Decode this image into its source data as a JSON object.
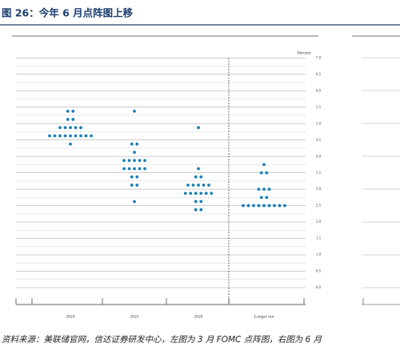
{
  "header": {
    "title": "图 26：今年 6 月点阵图上移"
  },
  "chart_data": {
    "type": "dot",
    "y_label": "Percent",
    "categories": [
      "2024",
      "2025",
      "2026",
      "Longer run"
    ],
    "values": [
      [
        5.375,
        5.375,
        5.125,
        5.125,
        4.875,
        4.875,
        4.875,
        4.875,
        4.875,
        4.625,
        4.625,
        4.625,
        4.625,
        4.625,
        4.625,
        4.625,
        4.625,
        4.625,
        4.375
      ],
      [
        5.375,
        4.375,
        4.375,
        4.125,
        3.875,
        3.875,
        3.875,
        3.875,
        3.875,
        3.625,
        3.625,
        3.625,
        3.625,
        3.625,
        3.375,
        3.375,
        3.125,
        3.125,
        2.625
      ],
      [
        4.875,
        3.625,
        3.375,
        3.375,
        3.125,
        3.125,
        3.125,
        3.125,
        3.125,
        2.875,
        2.875,
        2.875,
        2.875,
        2.875,
        2.875,
        2.625,
        2.625,
        2.375,
        2.375
      ],
      [
        3.75,
        3.5,
        3.5,
        3.0,
        3.0,
        3.0,
        2.75,
        2.75,
        2.5,
        2.5,
        2.5,
        2.5,
        2.5,
        2.5,
        2.5,
        2.5,
        2.5
      ]
    ],
    "color": "#1a7fb5",
    "ylim": [
      0,
      7.25
    ],
    "yticks": [
      {
        "value": 0,
        "label": "0.0"
      },
      {
        "value": 0.5,
        "label": "0.5"
      },
      {
        "value": 1,
        "label": "1.0"
      },
      {
        "value": 1.5,
        "label": "1.5"
      },
      {
        "value": 2,
        "label": "2.0"
      },
      {
        "value": 2.5,
        "label": "2.5"
      },
      {
        "value": 3,
        "label": "3.0"
      },
      {
        "value": 3.5,
        "label": "3.5"
      },
      {
        "value": 4,
        "label": "4.0"
      },
      {
        "value": 4.5,
        "label": "4.5"
      },
      {
        "value": 5,
        "label": "5.0"
      },
      {
        "value": 5.5,
        "label": "5.5"
      },
      {
        "value": 6,
        "label": "6.0"
      },
      {
        "value": 6.5,
        "label": "6.5"
      },
      {
        "value": 7,
        "label": "7.0"
      }
    ],
    "grid": true
  },
  "footer": {
    "source": "资料来源：美联储官网，信达证券研发中心，左图为 3 月 FOMC 点阵图，右图为 6 月"
  }
}
